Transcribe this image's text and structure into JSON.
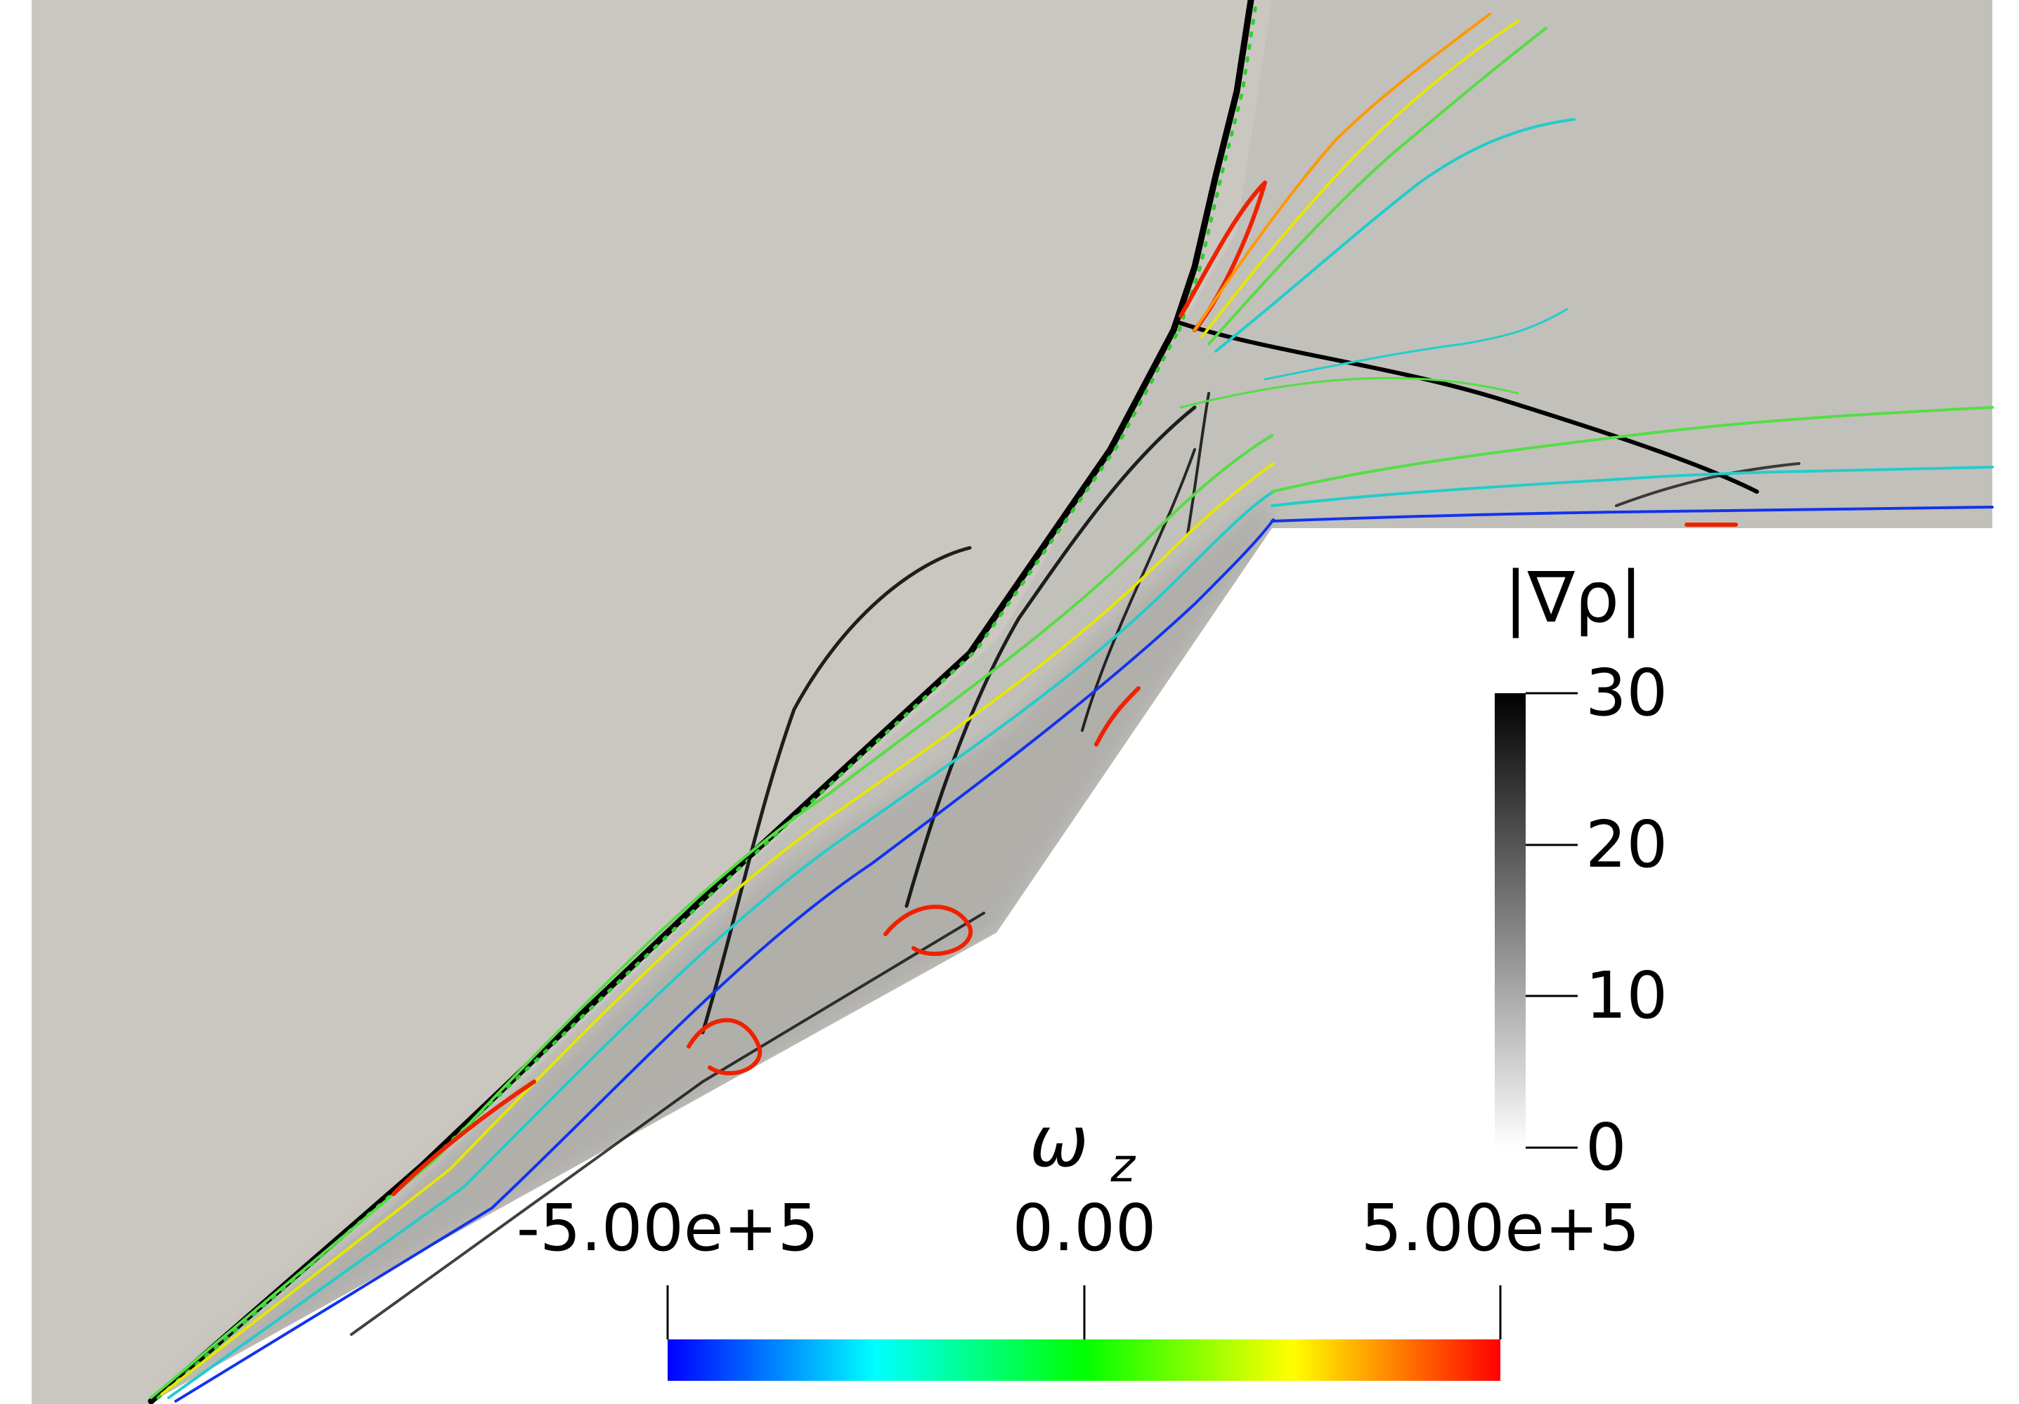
{
  "visualization": {
    "type": "flow-field-visualization",
    "background_field": {
      "name": "density gradient magnitude",
      "colormap": "white-to-black"
    },
    "contour_field": {
      "name": "vorticity",
      "colormap": "blue-cyan-green-yellow-red"
    }
  },
  "colorbars": {
    "density_gradient": {
      "title": "|∇ρ|",
      "labels": [
        "30",
        "20",
        "10",
        "0"
      ],
      "range": [
        0,
        30
      ],
      "colors": [
        "#ffffff",
        "#000000"
      ]
    },
    "vorticity": {
      "title_symbol": "ω",
      "title_subscript": "z",
      "labels": [
        "-5.00e+5",
        "0.00",
        "5.00e+5"
      ],
      "range": [
        -500000,
        500000
      ],
      "colors": [
        "#0000ff",
        "#00ffff",
        "#00ff00",
        "#ffff00",
        "#ff0000"
      ]
    }
  },
  "colors": {
    "freestream": "#c9c7c0",
    "shock": "#000000",
    "wall": "#ffffff"
  }
}
